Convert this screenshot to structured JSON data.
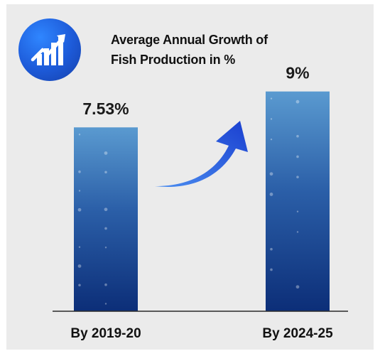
{
  "header": {
    "icon": "growth-chart-icon",
    "title_line1": "Average Annual Growth of",
    "title_line2": "Fish Production in %"
  },
  "colors": {
    "background": "#ebebeb",
    "accent": "#1d5ad8",
    "bar_light": "#4f8fc4",
    "bar_dark": "#0d2f78"
  },
  "chart_data": {
    "type": "bar",
    "categories": [
      "By 2019-20",
      "By 2024-25"
    ],
    "values": [
      7.53,
      9
    ],
    "value_labels": [
      "7.53%",
      "9%"
    ],
    "ylim": [
      0,
      11
    ],
    "grid": false,
    "annotation": "growth-arrow-icon"
  }
}
